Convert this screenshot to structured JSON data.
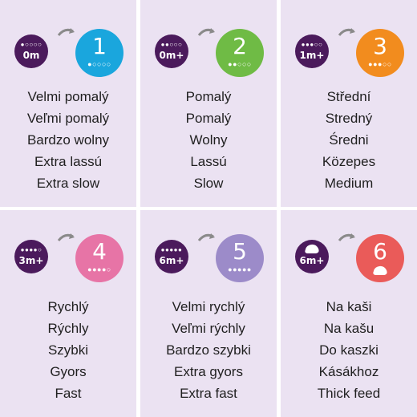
{
  "cards": [
    {
      "age": "0m",
      "age_drops": "💧○○○○",
      "number": "1",
      "number_drops": "💧○○○○",
      "color": "#1aa6dd",
      "labels": [
        "Velmi pomalý",
        "Veľmi pomalý",
        "Bardzo wolny",
        "Extra lassú",
        "Extra slow"
      ]
    },
    {
      "age": "0m+",
      "age_drops": "💧💧○○○",
      "number": "2",
      "number_drops": "💧💧○○○",
      "color": "#6fbb45",
      "labels": [
        "Pomalý",
        "Pomalý",
        "Wolny",
        "Lassú",
        "Slow"
      ]
    },
    {
      "age": "1m+",
      "age_drops": "💧💧💧○○",
      "number": "3",
      "number_drops": "💧💧💧○○",
      "color": "#f28c1e",
      "labels": [
        "Střední",
        "Stredný",
        "Średni",
        "Közepes",
        "Medium"
      ]
    },
    {
      "age": "3m+",
      "age_drops": "💧💧💧💧○",
      "number": "4",
      "number_drops": "💧💧💧💧○",
      "color": "#e774a6",
      "labels": [
        "Rychlý",
        "Rýchly",
        "Szybki",
        "Gyors",
        "Fast"
      ]
    },
    {
      "age": "6m+",
      "age_drops": "💧💧💧💧💧",
      "number": "5",
      "number_drops": "💧💧💧💧💧",
      "color": "#9c8bc9",
      "labels": [
        "Velmi rychlý",
        "Veľmi rýchly",
        "Bardzo szybki",
        "Extra gyors",
        "Extra fast"
      ]
    },
    {
      "age": "6m+",
      "age_drops": "",
      "number": "6",
      "number_drops": "",
      "color": "#ea5b59",
      "labels": [
        "Na kaši",
        "Na kašu",
        "Do kaszki",
        "Kásákhoz",
        "Thick feed"
      ]
    }
  ],
  "colors": {
    "card_bg": "#ebe2f2",
    "age_badge": "#4b1a5c",
    "arrow": "#8a8a8a",
    "text": "#1f1f1f"
  },
  "icons": {
    "arrow": "curved-arrow-icon",
    "drop": "drop-icon",
    "thick-feed": "thick-feed-icon"
  }
}
